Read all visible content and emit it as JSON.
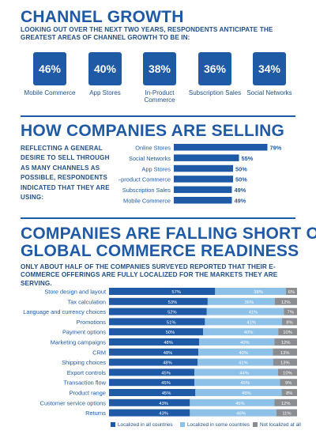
{
  "section1": {
    "title": "CHANNEL GROWTH",
    "subtitle": "LOOKING OUT OVER THE NEXT TWO YEARS, RESPONDENTS ANTICIPATE THE GREATEST AREAS OF CHANNEL GROWTH TO BE IN:",
    "tiles": [
      {
        "value": "46%",
        "label": "Mobile Commerce"
      },
      {
        "value": "40%",
        "label": "App Stores"
      },
      {
        "value": "38%",
        "label": "In-Product Commerce"
      },
      {
        "value": "36%",
        "label": "Subscription Sales"
      },
      {
        "value": "34%",
        "label": "Social Networks"
      }
    ]
  },
  "section2": {
    "title": "HOW COMPANIES ARE SELLING",
    "intro": "REFLECTING A GENERAL DESIRE TO SELL THROUGH AS MANY CHANNELS AS POSSIBLE, RESPONDENTS INDICATED THAT THEY ARE USING:"
  },
  "section3": {
    "title_line1": "COMPANIES ARE FALLING SHORT ON",
    "title_line2": "GLOBAL COMMERCE READINESS",
    "subtitle": "ONLY ABOUT HALF OF THE COMPANIES SURVEYED REPORTED THAT THEIR E-COMMERCE OFFERINGS ARE FULLY LOCALIZED FOR THE MARKETS THEY ARE SERVING."
  },
  "colors": {
    "dark_blue": "#1f5aa6",
    "light_blue": "#8ec1e8",
    "gray": "#8a8d91"
  },
  "chart_data": [
    {
      "type": "bar",
      "orientation": "horizontal",
      "title": "",
      "categories": [
        "Online Stores",
        "Social Networks",
        "App Stores",
        "In-product Commerce",
        "Subscription Sales",
        "Mobile Commerce"
      ],
      "values": [
        79,
        55,
        50,
        50,
        49,
        49
      ],
      "value_labels": [
        "79%",
        "55%",
        "50%",
        "50%",
        "49%",
        "49%"
      ],
      "xlim": [
        0,
        100
      ],
      "grid": false
    },
    {
      "type": "bar",
      "orientation": "horizontal",
      "stacked": true,
      "title": "",
      "categories": [
        "Store design and layout",
        "Tax calculation",
        "Language and currency choices",
        "Promotions",
        "Payment options",
        "Marketing campaigns",
        "CRM",
        "Shipping choices",
        "Export controls",
        "Transaction flow",
        "Product range",
        "Customer service options",
        "Returns"
      ],
      "series": [
        {
          "name": "Localized in all countries",
          "values": [
            57,
            53,
            52,
            51,
            50,
            48,
            48,
            48,
            45,
            45,
            45,
            43,
            43
          ]
        },
        {
          "name": "Localized in some countries",
          "values": [
            38,
            36,
            41,
            41,
            40,
            40,
            40,
            41,
            44,
            45,
            45,
            45,
            46
          ]
        },
        {
          "name": "Not localized at all",
          "values": [
            6,
            12,
            7,
            8,
            10,
            12,
            13,
            13,
            10,
            9,
            8,
            12,
            11
          ]
        }
      ],
      "xlim": [
        0,
        100
      ],
      "legend": "bottom",
      "grid": false
    }
  ]
}
